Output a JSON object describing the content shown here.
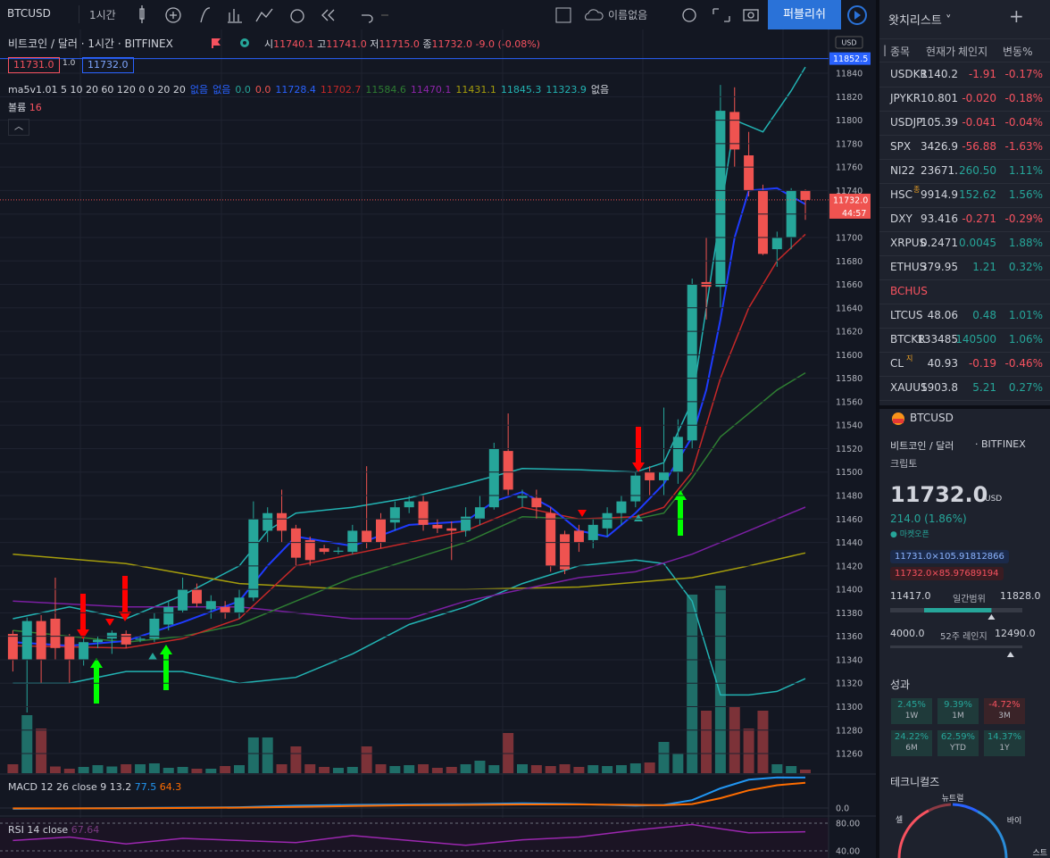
{
  "toolbar": {
    "symbol": "BTCUSD",
    "interval": "1시간",
    "layout_name": "이름없음",
    "publish": "퍼블리쉬"
  },
  "legend": {
    "title": "비트코인 / 달러 · 1시간 · BITFINEX",
    "o_label": "시",
    "o": "11740.1",
    "h_label": "고",
    "h": "11741.0",
    "l_label": "저",
    "l": "11715.0",
    "c_label": "종",
    "c": "11732.0",
    "change": "-9.0 (-0.08%)",
    "bid": "11731.0",
    "spread": "1.0",
    "ask": "11732.0",
    "ma_label": "ma5v1.01 5 10 20 60 120 0 0 20 20",
    "ma_values": [
      "없음",
      "없음",
      "0.0",
      "0.0",
      "11728.4",
      "11702.7",
      "11584.6",
      "11470.1",
      "11431.1",
      "11845.3",
      "11323.9",
      "없음"
    ],
    "ma_colors": [
      "#2962ff",
      "#2962ff",
      "#26a69a",
      "#ef5350",
      "#2962ff",
      "#c62828",
      "#2e7d32",
      "#8e24aa",
      "#a59d0c",
      "#22b3b3",
      "#22b3b3",
      "#d1d4dc"
    ],
    "volume_label": "볼륨",
    "volume_value": "16",
    "macd_label": "MACD 12 26 close 9",
    "macd_values": [
      "13.2",
      "77.5",
      "64.3"
    ],
    "rsi_label": "RSI 14 close",
    "rsi_value": "67.64"
  },
  "chart": {
    "type": "candlestick",
    "price_axis_label": "USD",
    "up_color": "#26a69a",
    "down_color": "#ef5350",
    "up_volume_color": "#1f6e68",
    "down_volume_color": "#7c3238",
    "ylim": [
      11243.3,
      11872
    ],
    "yticks": [
      11260,
      11280,
      11300,
      11320,
      11340,
      11360,
      11380,
      11400,
      11420,
      11440,
      11460,
      11480,
      11500,
      11520,
      11540,
      11560,
      11580,
      11600,
      11620,
      11640,
      11660,
      11680,
      11700,
      11720,
      11740,
      11760,
      11780,
      11800,
      11820,
      11840
    ],
    "high_line": {
      "value": 11852.5,
      "label": "11852.5"
    },
    "last_price": {
      "value": 11732,
      "label": "11732.0"
    },
    "countdown": "44:57",
    "open": [
      11362,
      11340,
      11373,
      11375,
      11360,
      11340,
      11355,
      11358,
      11362,
      11357,
      11358,
      11370,
      11382,
      11400,
      11383,
      11385,
      11380,
      11393,
      11450,
      11465,
      11452,
      11442,
      11435,
      11432,
      11432,
      11450,
      11460,
      11457,
      11470,
      11475,
      11455,
      11452,
      11450,
      11460,
      11470,
      11518,
      11478,
      11478,
      11465,
      11447,
      11450,
      11442,
      11452,
      11465,
      11475,
      11500,
      11493,
      11500,
      11527,
      11662,
      11658,
      11807,
      11770,
      11740,
      11690,
      11700,
      11740
    ],
    "high": [
      11365,
      11376,
      11378,
      11410,
      11362,
      11360,
      11360,
      11365,
      11365,
      11360,
      11380,
      11390,
      11410,
      11405,
      11395,
      11390,
      11400,
      11475,
      11470,
      11485,
      11455,
      11445,
      11438,
      11436,
      11455,
      11505,
      11465,
      11475,
      11480,
      11480,
      11460,
      11458,
      11470,
      11480,
      11525,
      11550,
      11485,
      11485,
      11470,
      11450,
      11455,
      11460,
      11470,
      11480,
      11500,
      11505,
      11555,
      11545,
      11665,
      11700,
      11830,
      11828,
      11790,
      11745,
      11705,
      11742,
      11741
    ],
    "low": [
      11330,
      11295,
      11320,
      11340,
      11320,
      11335,
      11350,
      11345,
      11350,
      11355,
      11355,
      11365,
      11380,
      11385,
      11375,
      11375,
      11375,
      11390,
      11440,
      11440,
      11420,
      11420,
      11430,
      11430,
      11430,
      11435,
      11435,
      11450,
      11465,
      11450,
      11448,
      11425,
      11445,
      11455,
      11468,
      11480,
      11470,
      11460,
      11415,
      11413,
      11432,
      11435,
      11445,
      11455,
      11470,
      11480,
      11480,
      11490,
      11520,
      11630,
      11640,
      11760,
      11735,
      11685,
      11675,
      11690,
      11715
    ],
    "close": [
      11340,
      11373,
      11340,
      11350,
      11340,
      11355,
      11357,
      11363,
      11353,
      11358,
      11375,
      11385,
      11400,
      11388,
      11390,
      11380,
      11393,
      11460,
      11465,
      11450,
      11427,
      11425,
      11432,
      11433,
      11450,
      11440,
      11440,
      11470,
      11475,
      11455,
      11452,
      11450,
      11462,
      11470,
      11520,
      11485,
      11480,
      11470,
      11420,
      11417,
      11440,
      11455,
      11465,
      11475,
      11497,
      11493,
      11500,
      11530,
      11660,
      11658,
      11808,
      11775,
      11740,
      11686,
      11700,
      11740,
      11732
    ],
    "volumes": [
      40,
      260,
      200,
      30,
      20,
      28,
      36,
      30,
      40,
      40,
      44,
      24,
      28,
      20,
      20,
      32,
      36,
      160,
      160,
      40,
      120,
      40,
      28,
      24,
      28,
      120,
      40,
      32,
      36,
      40,
      24,
      28,
      40,
      56,
      36,
      180,
      40,
      36,
      32,
      40,
      28,
      36,
      32,
      36,
      44,
      48,
      140,
      88,
      800,
      280,
      840,
      300,
      200,
      280,
      40,
      32,
      16
    ],
    "lines": [
      {
        "color": "#22b3b3",
        "x": [
          0,
          4,
          8,
          12,
          16,
          18,
          20,
          24,
          28,
          32,
          36,
          40,
          44,
          46,
          48,
          50,
          51,
          53,
          55,
          56
        ],
        "values": [
          11375,
          11385,
          11375,
          11395,
          11420,
          11450,
          11465,
          11470,
          11478,
          11490,
          11503,
          11502,
          11500,
          11508,
          11560,
          11720,
          11800,
          11790,
          11825,
          11845.3
        ]
      },
      {
        "color": "#22b3b3",
        "x": [
          0,
          4,
          8,
          12,
          16,
          20,
          24,
          28,
          32,
          36,
          40,
          44,
          46,
          48,
          50,
          52,
          54,
          56
        ],
        "values": [
          11320,
          11320,
          11330,
          11330,
          11320,
          11325,
          11345,
          11370,
          11385,
          11405,
          11420,
          11425,
          11422,
          11390,
          11310,
          11310,
          11313,
          11323.9
        ]
      },
      {
        "color": "#a59d0c",
        "x": [
          0,
          8,
          16,
          24,
          32,
          40,
          48,
          52,
          56
        ],
        "values": [
          11430,
          11422,
          11405,
          11400,
          11400,
          11402,
          11410,
          11420,
          11431.1
        ]
      },
      {
        "color": "#7b1fa2",
        "x": [
          0,
          8,
          16,
          24,
          28,
          32,
          36,
          40,
          44,
          48,
          52,
          56
        ],
        "values": [
          11390,
          11385,
          11385,
          11375,
          11375,
          11390,
          11400,
          11410,
          11415,
          11430,
          11450,
          11470.1
        ]
      },
      {
        "color": "#2e7d32",
        "x": [
          0,
          8,
          12,
          16,
          20,
          24,
          28,
          32,
          36,
          40,
          44,
          46,
          48,
          50,
          52,
          54,
          56
        ],
        "values": [
          11365,
          11355,
          11360,
          11370,
          11390,
          11410,
          11425,
          11440,
          11462,
          11460,
          11460,
          11465,
          11495,
          11530,
          11550,
          11570,
          11584.6
        ]
      },
      {
        "color": "#c62828",
        "x": [
          0,
          8,
          12,
          16,
          20,
          24,
          28,
          32,
          36,
          40,
          44,
          46,
          48,
          50,
          52,
          54,
          56
        ],
        "values": [
          11352,
          11350,
          11358,
          11375,
          11420,
          11430,
          11440,
          11450,
          11470,
          11460,
          11462,
          11470,
          11500,
          11580,
          11640,
          11680,
          11702.7
        ]
      },
      {
        "color": "#1e3bff",
        "x": [
          0,
          4,
          8,
          12,
          16,
          18,
          20,
          24,
          28,
          32,
          34,
          36,
          38,
          40,
          42,
          44,
          46,
          48,
          49,
          50,
          51,
          52,
          54,
          56
        ],
        "values": [
          11355,
          11352,
          11356,
          11372,
          11390,
          11420,
          11445,
          11437,
          11455,
          11458,
          11475,
          11483,
          11470,
          11450,
          11445,
          11465,
          11490,
          11530,
          11570,
          11630,
          11700,
          11740,
          11742,
          11728.4
        ]
      }
    ]
  },
  "macd": {
    "ylim": [
      -15.9,
      79.5
    ],
    "yticks": [
      {
        "value": 0,
        "label": "0.0"
      }
    ],
    "x": [
      0,
      8,
      16,
      20,
      24,
      28,
      32,
      36,
      40,
      44,
      46,
      48,
      50,
      52,
      54,
      56
    ],
    "series": [
      {
        "color": "#2196f3",
        "values": [
          -2,
          0,
          2,
          6,
          8,
          9,
          10,
          12,
          10,
          6,
          8,
          20,
          50,
          72,
          78,
          77.5
        ]
      },
      {
        "color": "#ff6d00",
        "values": [
          -1,
          -1,
          1,
          3,
          5,
          7,
          8,
          9,
          9,
          8,
          7,
          10,
          25,
          45,
          58,
          64.3
        ]
      }
    ]
  },
  "rsi": {
    "ylim": [
      29.7,
      87.7
    ],
    "yticks": [
      {
        "value": 80,
        "label": "80.00"
      },
      {
        "value": 40,
        "label": "40.00"
      }
    ],
    "x": [
      0,
      4,
      8,
      12,
      16,
      20,
      24,
      28,
      32,
      36,
      40,
      44,
      48,
      50,
      52,
      56
    ],
    "color": "#9c27b0",
    "values": [
      55,
      60,
      50,
      58,
      55,
      52,
      62,
      55,
      48,
      56,
      60,
      70,
      78,
      72,
      66,
      67.64
    ]
  },
  "watchlist": {
    "title": "왓치리스트",
    "headers": [
      "종목",
      "현재가",
      "체인지",
      "변동%"
    ],
    "rows": [
      {
        "symbol": "USDKR",
        "last": "1140.2",
        "change": "-1.91",
        "pct": "-0.17%"
      },
      {
        "symbol": "JPYKR",
        "last": "10.801",
        "change": "-0.020",
        "pct": "-0.18%"
      },
      {
        "symbol": "USDJP",
        "last": "105.39",
        "change": "-0.041",
        "pct": "-0.04%"
      },
      {
        "symbol": "SPX",
        "last": "3426.9",
        "change": "-56.88",
        "pct": "-1.63%"
      },
      {
        "symbol": "NI22",
        "last": "23671.",
        "change": "260.50",
        "pct": "1.11%"
      },
      {
        "symbol": "HSC",
        "badge": "종",
        "last": "9914.9",
        "change": "152.62",
        "pct": "1.56%"
      },
      {
        "symbol": "DXY",
        "last": "93.416",
        "change": "-0.271",
        "pct": "-0.29%"
      },
      {
        "symbol": "XRPUS",
        "last": "0.2471",
        "change": "0.0045",
        "pct": "1.88%"
      },
      {
        "symbol": "ETHUS",
        "last": "379.95",
        "change": "1.21",
        "pct": "0.32%"
      },
      {
        "symbol": "BCHUS",
        "symbol_color": "#f7525f"
      },
      {
        "symbol": "LTCUS",
        "last": "48.06",
        "change": "0.48",
        "pct": "1.01%"
      },
      {
        "symbol": "BTCKR",
        "last": "133485",
        "change": "140500",
        "pct": "1.06%"
      },
      {
        "symbol": "CL",
        "badge": "지",
        "last": "40.93",
        "change": "-0.19",
        "pct": "-0.46%"
      },
      {
        "symbol": "XAUUS",
        "last": "1903.8",
        "change": "5.21",
        "pct": "0.27%"
      }
    ]
  },
  "details": {
    "symbol": "BTCUSD",
    "name": "비트코인 / 달러",
    "exchange": "· BITFINEX",
    "category": "크립토",
    "price": "11732.0",
    "currency": "USD",
    "change": "214.0 (1.86%)",
    "market_status": "● 마켓오픈",
    "bid": "11731.0×105.91812866",
    "ask": "11732.0×85.97689194",
    "day_low": {
      "value": 11417,
      "label": "11417.0"
    },
    "day_range_label": "일간범위",
    "day_high": {
      "value": 11828,
      "label": "11828.0"
    },
    "year_low": {
      "value": 4000,
      "label": "4000.0"
    },
    "year_range_label": "52주 레인지",
    "year_high": {
      "value": 12490,
      "label": "12490.0"
    },
    "current": 11732,
    "performance_title": "성과",
    "performance": [
      {
        "value": "2.45%",
        "period": "1W"
      },
      {
        "value": "9.39%",
        "period": "1M"
      },
      {
        "value": "-4.72%",
        "period": "3M"
      },
      {
        "value": "24.22%",
        "period": "6M"
      },
      {
        "value": "62.59%",
        "period": "YTD"
      },
      {
        "value": "14.37%",
        "period": "1Y"
      }
    ],
    "technicals_title": "테크니컬즈",
    "gauge_neutral": "뉴트럴",
    "gauge_sell": "셀",
    "gauge_buy": "바이",
    "gauge_strong": "스트"
  }
}
